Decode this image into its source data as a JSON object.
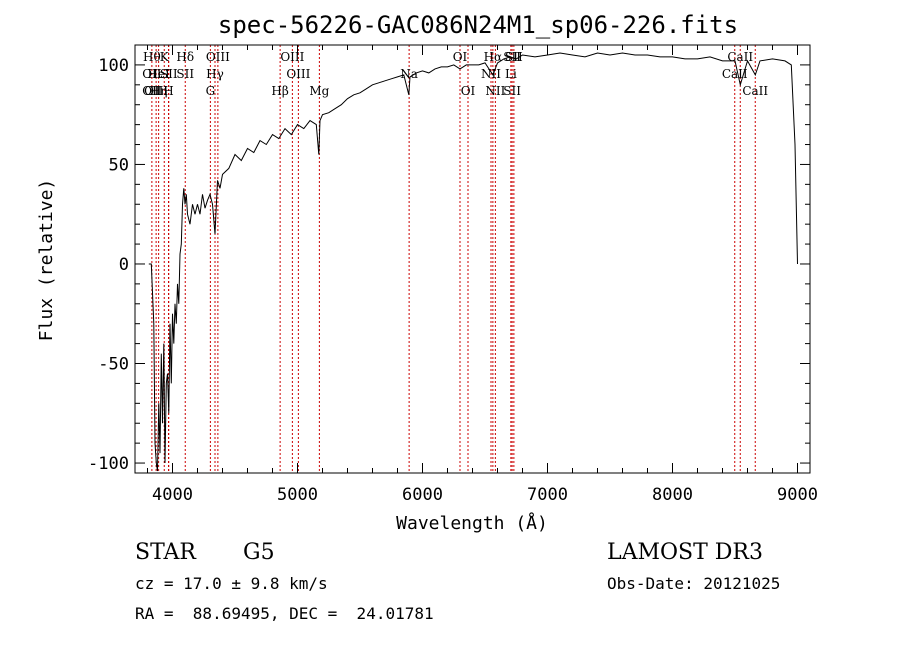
{
  "chart_data": {
    "type": "line",
    "title": "spec-56226-GAC086N24M1_sp06-226.fits",
    "xlabel": "Wavelength (Å)",
    "ylabel": "Flux (relative)",
    "xlim": [
      3700,
      9100
    ],
    "ylim": [
      -105,
      110
    ],
    "xticks": [
      4000,
      5000,
      6000,
      7000,
      8000,
      9000
    ],
    "yticks": [
      -100,
      -50,
      0,
      50,
      100
    ],
    "grid": false,
    "line_color": "#000000",
    "marker_color": "#cc0000",
    "series": [
      {
        "x": [
          3810,
          3830,
          3850,
          3860,
          3870,
          3880,
          3890,
          3900,
          3910,
          3920,
          3930,
          3940,
          3950,
          3960,
          3970,
          3980,
          3990,
          4000,
          4010,
          4020,
          4030,
          4040,
          4050,
          4060,
          4070,
          4080,
          4090,
          4100,
          4110,
          4120,
          4140,
          4160,
          4180,
          4200,
          4220,
          4240,
          4260,
          4280,
          4300,
          4320,
          4340,
          4360,
          4380,
          4400,
          4450,
          4500,
          4550,
          4600,
          4650,
          4700,
          4750,
          4800,
          4850,
          4900,
          4950,
          5000,
          5050,
          5100,
          5150,
          5170,
          5180,
          5200,
          5250,
          5300,
          5350,
          5400,
          5450,
          5500,
          5550,
          5600,
          5650,
          5700,
          5750,
          5800,
          5850,
          5890,
          5900,
          5950,
          6000,
          6050,
          6100,
          6150,
          6200,
          6250,
          6300,
          6350,
          6400,
          6450,
          6500,
          6563,
          6600,
          6650,
          6700,
          6750,
          6800,
          6900,
          7000,
          7100,
          7200,
          7300,
          7400,
          7500,
          7600,
          7700,
          7800,
          7900,
          8000,
          8100,
          8200,
          8300,
          8400,
          8500,
          8542,
          8600,
          8662,
          8700,
          8800,
          8900,
          8950,
          8980,
          9000
        ],
        "y": [
          0,
          0,
          -30,
          -90,
          -100,
          -104,
          -70,
          -95,
          -45,
          -80,
          -40,
          -100,
          -60,
          -55,
          -75,
          -30,
          -60,
          -25,
          -40,
          -20,
          -30,
          -10,
          -20,
          5,
          10,
          30,
          38,
          30,
          35,
          25,
          20,
          30,
          25,
          30,
          25,
          35,
          28,
          32,
          35,
          30,
          15,
          42,
          38,
          45,
          48,
          55,
          52,
          58,
          56,
          62,
          60,
          65,
          63,
          68,
          65,
          70,
          68,
          72,
          70,
          55,
          72,
          75,
          76,
          78,
          80,
          83,
          85,
          86,
          88,
          90,
          91,
          92,
          93,
          94,
          95,
          85,
          94,
          96,
          97,
          96,
          98,
          99,
          99,
          100,
          98,
          100,
          100,
          100,
          101,
          95,
          101,
          103,
          104,
          103,
          105,
          104,
          105,
          106,
          105,
          104,
          106,
          105,
          106,
          105,
          105,
          104,
          104,
          103,
          103,
          104,
          102,
          102,
          90,
          102,
          95,
          102,
          103,
          102,
          100,
          60,
          0
        ]
      }
    ],
    "lines": [
      {
        "x": 3835,
        "labels": [
          "Hθ",
          "OII",
          "OII"
        ]
      },
      {
        "x": 3869,
        "labels": [
          "",
          "",
          "OIII"
        ]
      },
      {
        "x": 3889,
        "labels": [
          "",
          "HeI",
          "Hη"
        ]
      },
      {
        "x": 3934,
        "labels": [
          "K",
          "",
          ""
        ]
      },
      {
        "x": 3968,
        "labels": [
          "",
          "",
          "H"
        ]
      },
      {
        "x": 3970,
        "labels": [
          "",
          "SII",
          ""
        ]
      },
      {
        "x": 4102,
        "labels": [
          "Hδ",
          "SII",
          ""
        ]
      },
      {
        "x": 4303,
        "labels": [
          "",
          "",
          "G"
        ]
      },
      {
        "x": 4340,
        "labels": [
          "",
          "Hγ",
          ""
        ]
      },
      {
        "x": 4363,
        "labels": [
          "OIII",
          "",
          ""
        ]
      },
      {
        "x": 4861,
        "labels": [
          "",
          "",
          "Hβ"
        ]
      },
      {
        "x": 4959,
        "labels": [
          "OIII",
          "",
          ""
        ]
      },
      {
        "x": 5007,
        "labels": [
          "",
          "OIII",
          ""
        ]
      },
      {
        "x": 5175,
        "labels": [
          "",
          "",
          "Mg"
        ]
      },
      {
        "x": 5893,
        "labels": [
          "",
          "Na",
          ""
        ]
      },
      {
        "x": 6300,
        "labels": [
          "OI",
          "",
          ""
        ]
      },
      {
        "x": 6364,
        "labels": [
          "",
          "",
          "OI"
        ]
      },
      {
        "x": 6548,
        "labels": [
          "",
          "NII",
          ""
        ]
      },
      {
        "x": 6563,
        "labels": [
          "Hα",
          "",
          ""
        ]
      },
      {
        "x": 6583,
        "labels": [
          "",
          "",
          "NII"
        ]
      },
      {
        "x": 6707,
        "labels": [
          "",
          "Li",
          ""
        ]
      },
      {
        "x": 6717,
        "labels": [
          "SII",
          "",
          "SII"
        ]
      },
      {
        "x": 6731,
        "labels": [
          "SII",
          "",
          ""
        ]
      },
      {
        "x": 8498,
        "labels": [
          "",
          "CaII",
          ""
        ]
      },
      {
        "x": 8542,
        "labels": [
          "CaII",
          "",
          ""
        ]
      },
      {
        "x": 8662,
        "labels": [
          "",
          "",
          "CaII"
        ]
      }
    ]
  },
  "info": {
    "class": "STAR",
    "subclass": "G5",
    "survey": "LAMOST DR3",
    "cz": "cz = 17.0 ± 9.8 km/s",
    "obs_date": "Obs-Date: 20121025",
    "coords": "RA =  88.69495, DEC =  24.01781"
  }
}
